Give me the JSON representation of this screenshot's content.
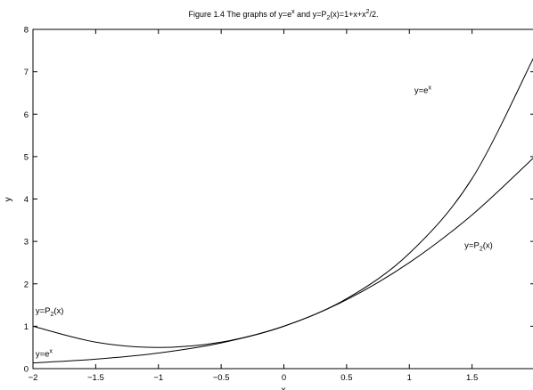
{
  "chart_data": {
    "type": "line",
    "title": {
      "prefix": "Figure 1.4 The graphs of y=e",
      "sup1": "x",
      "mid1": " and y=P",
      "sub1": "2",
      "mid2": "(x)=1+x+x",
      "sup2": "2",
      "suffix": "/2."
    },
    "xlabel": "x",
    "ylabel": "y",
    "xlim": [
      -2,
      2
    ],
    "ylim": [
      0,
      8
    ],
    "xticks": [
      -2,
      -1.5,
      -1,
      -0.5,
      0,
      0.5,
      1,
      1.5,
      2
    ],
    "xtick_labels": [
      "−2",
      "−1.5",
      "−1",
      "−0.5",
      "0",
      "0.5",
      "1",
      "1.5",
      "2"
    ],
    "yticks": [
      0,
      1,
      2,
      3,
      4,
      5,
      6,
      7,
      8
    ],
    "ytick_labels": [
      "0",
      "1",
      "2",
      "3",
      "4",
      "5",
      "6",
      "7",
      "8"
    ],
    "grid": false,
    "series": [
      {
        "name": "y=e^x",
        "color": "#000000",
        "x": [
          -2,
          -1.5,
          -1,
          -0.5,
          0,
          0.5,
          1,
          1.5,
          2
        ],
        "y": [
          0.1353,
          0.2231,
          0.3679,
          0.6065,
          1.0,
          1.6487,
          2.7183,
          4.4817,
          7.3891
        ]
      },
      {
        "name": "y=P_2(x)",
        "color": "#000000",
        "x": [
          -2,
          -1.5,
          -1,
          -0.5,
          0,
          0.5,
          1,
          1.5,
          2
        ],
        "y": [
          1.0,
          0.625,
          0.5,
          0.625,
          1.0,
          1.625,
          2.5,
          3.625,
          5.0
        ]
      }
    ],
    "annotations": [
      {
        "base": "y=e",
        "sup": "x",
        "sub": "",
        "tail": "",
        "x": 1.04,
        "y": 6.5
      },
      {
        "base": "y=P",
        "sup": "",
        "sub": "2",
        "tail": "(x)",
        "x": 1.44,
        "y": 2.85
      },
      {
        "base": "y=P",
        "sup": "",
        "sub": "2",
        "tail": "(x)",
        "x": -1.98,
        "y": 1.3
      },
      {
        "base": "y=e",
        "sup": "x",
        "sub": "",
        "tail": "",
        "x": -1.98,
        "y": 0.28
      }
    ]
  }
}
